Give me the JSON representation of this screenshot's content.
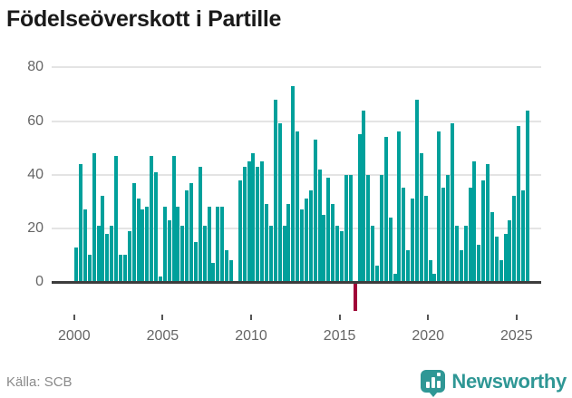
{
  "title": "Födelseöverskott i Partille",
  "source": "Källa: SCB",
  "brand": {
    "name": "Newsworthy",
    "icon": "chart-speech-bubble-icon",
    "color": "#2f9795"
  },
  "colors": {
    "bar_positive": "#00a09b",
    "bar_negative": "#a00338",
    "gridline": "#e4e4e4",
    "axis": "#3d3d3d",
    "tick_label": "#666666"
  },
  "chart_data": {
    "type": "bar",
    "title": "Födelseöverskott i Partille",
    "xlabel": "",
    "ylabel": "",
    "frequency": "quarterly",
    "start_period": "2000-Q1",
    "end_period": "2025-Q3",
    "x_tick_years": [
      2000,
      2005,
      2010,
      2015,
      2020,
      2025
    ],
    "y_ticks": [
      0,
      20,
      40,
      60,
      80
    ],
    "ylim": [
      -14,
      84
    ],
    "grid": "horizontal",
    "legend": "none",
    "negative_values_highlighted": true,
    "values": [
      13,
      44,
      27,
      10,
      48,
      21,
      32,
      18,
      21,
      47,
      10,
      10,
      19,
      37,
      31,
      27,
      28,
      47,
      41,
      2,
      28,
      23,
      47,
      28,
      21,
      34,
      37,
      15,
      43,
      21,
      28,
      7,
      28,
      28,
      12,
      8,
      0,
      38,
      43,
      45,
      48,
      43,
      45,
      29,
      21,
      68,
      59,
      21,
      29,
      73,
      56,
      27,
      31,
      34,
      53,
      42,
      25,
      39,
      29,
      21,
      19,
      40,
      40,
      -10,
      55,
      64,
      40,
      21,
      6,
      40,
      54,
      24,
      3,
      56,
      35,
      12,
      31,
      68,
      48,
      32,
      8,
      3,
      56,
      35,
      40,
      59,
      21,
      12,
      21,
      35,
      45,
      14,
      38,
      44,
      26,
      17,
      8,
      18,
      23,
      32,
      58,
      34,
      64
    ]
  }
}
